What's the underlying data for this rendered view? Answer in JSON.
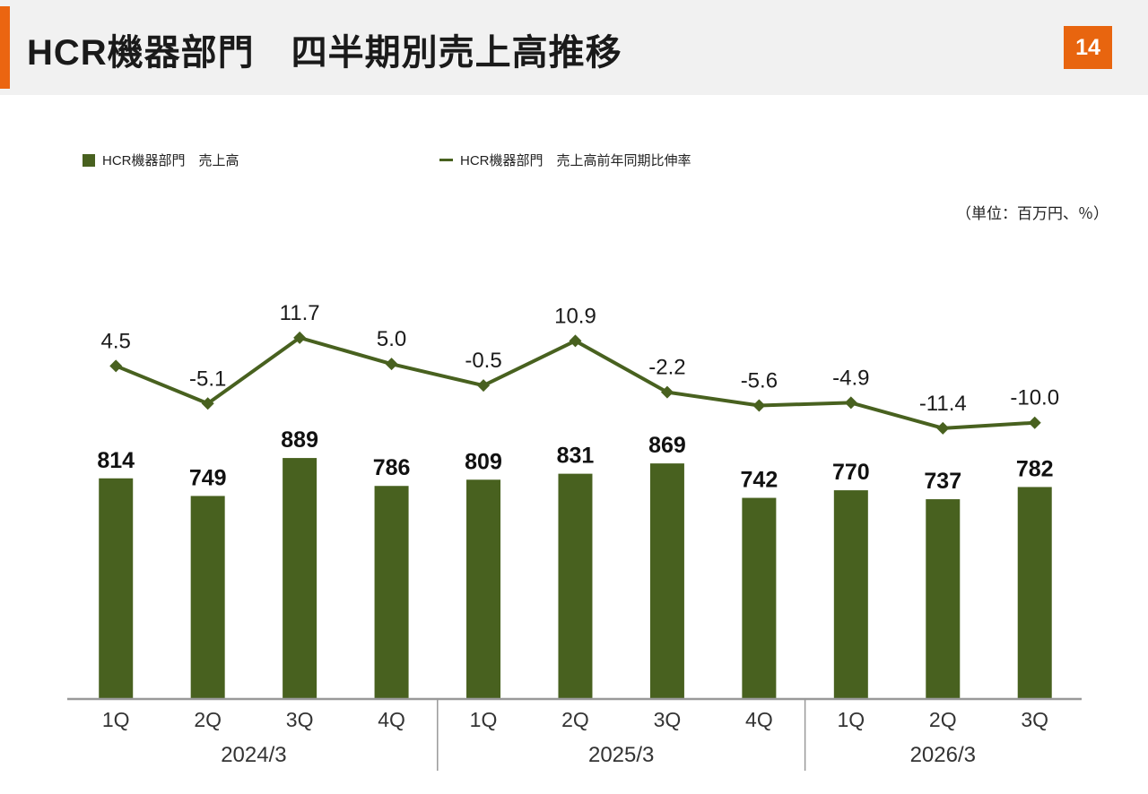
{
  "page": {
    "title": "HCR機器部門　四半期別売上高推移",
    "page_number": "14",
    "unit_note": "（単位：百万円、％）"
  },
  "legend": {
    "bar_label": "HCR機器部門　売上高",
    "line_label": "HCR機器部門　売上高前年同期比伸率"
  },
  "colors": {
    "accent_orange": "#e8650f",
    "series_green": "#48611f",
    "axis_gray": "#999999",
    "header_bg": "#f1f1f1"
  },
  "chart_data": {
    "type": "bar+line",
    "categories": [
      "1Q",
      "2Q",
      "3Q",
      "4Q",
      "1Q",
      "2Q",
      "3Q",
      "4Q",
      "1Q",
      "2Q",
      "3Q"
    ],
    "groups": [
      {
        "label": "2024/3",
        "span": 4
      },
      {
        "label": "2025/3",
        "span": 4
      },
      {
        "label": "2026/3",
        "span": 3
      }
    ],
    "series": [
      {
        "name": "HCR機器部門　売上高",
        "type": "bar",
        "unit": "百万円",
        "values": [
          814,
          749,
          889,
          786,
          809,
          831,
          869,
          742,
          770,
          737,
          782
        ]
      },
      {
        "name": "HCR機器部門　売上高前年同期比伸率",
        "type": "line",
        "unit": "%",
        "values": [
          4.5,
          -5.1,
          11.7,
          5.0,
          -0.5,
          10.9,
          -2.2,
          -5.6,
          -4.9,
          -11.4,
          -10.0
        ]
      }
    ],
    "bar_value_range": [
      0,
      920
    ],
    "line_value_range": [
      -15,
      15
    ],
    "legend_position": "top-left",
    "grid": false
  }
}
